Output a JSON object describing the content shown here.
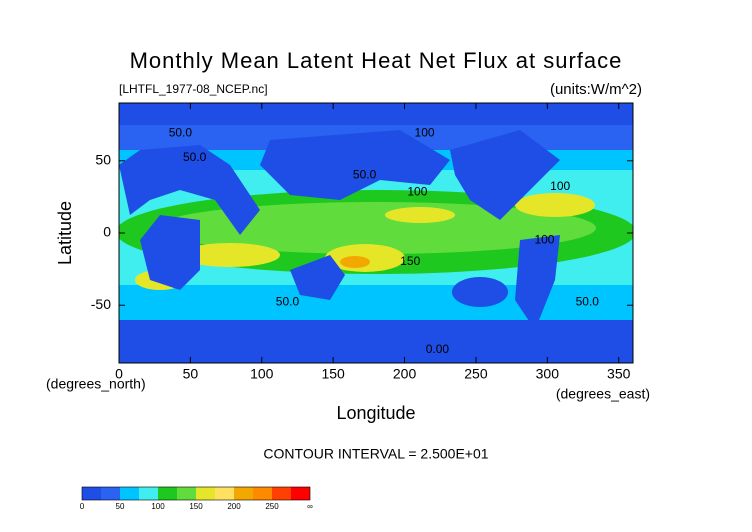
{
  "chart_data": {
    "type": "contour-map",
    "title": "Monthly Mean Latent Heat Net Flux at surface",
    "subtitle": "[LHTFL_1977-08_NCEP.nc]",
    "units": "(units:W/m^2)",
    "x_label": "Longitude",
    "y_label": "Latitude",
    "x_unit_label": "(degrees_east)",
    "y_unit_label": "(degrees_north)",
    "contour_interval": "CONTOUR INTERVAL = 2.500E+01",
    "xlim": [
      0,
      360
    ],
    "ylim": [
      -90,
      90
    ],
    "xticks": [
      0,
      50,
      100,
      150,
      200,
      250,
      300,
      350
    ],
    "yticks": [
      -50,
      0,
      50
    ],
    "annotations": [
      {
        "text": "50.0",
        "x": 43,
        "y": 69
      },
      {
        "text": "50.0",
        "x": 53,
        "y": 52
      },
      {
        "text": "100",
        "x": 214,
        "y": 69
      },
      {
        "text": "50.0",
        "x": 172,
        "y": 40
      },
      {
        "text": "100",
        "x": 209,
        "y": 28
      },
      {
        "text": "100",
        "x": 309,
        "y": 32
      },
      {
        "text": "100",
        "x": 298,
        "y": -5
      },
      {
        "text": "150",
        "x": 204,
        "y": -20
      },
      {
        "text": "50.0",
        "x": 118,
        "y": -48
      },
      {
        "text": "50.0",
        "x": 328,
        "y": -48
      },
      {
        "text": "0.00",
        "x": 223,
        "y": -81
      }
    ],
    "colorbar": {
      "labels": [
        "0",
        "50",
        "100",
        "150",
        "200",
        "250",
        "∞"
      ],
      "colors": [
        "#1e4ee6",
        "#2a62f2",
        "#00c4ff",
        "#40eef0",
        "#1ec81e",
        "#60dc3c",
        "#e6e628",
        "#ffe060",
        "#f2a800",
        "#ff8a00",
        "#ff4000",
        "#ff0000"
      ]
    }
  }
}
